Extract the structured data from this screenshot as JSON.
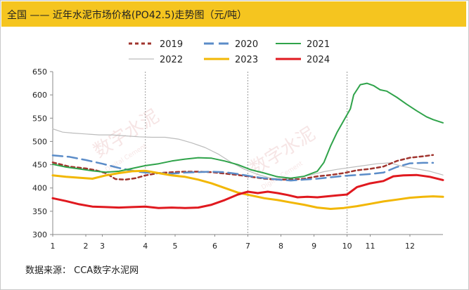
{
  "title": "全国 —— 近年水泥市场价格(PO42.5)走势图（元/吨）",
  "source": "数据来源：  CCA数字水泥网",
  "watermark": {
    "brand": "数字水泥",
    "sub": "Digital Cement"
  },
  "chart_data": {
    "type": "line",
    "title": "全国 —— 近年水泥市场价格(PO42.5)走势图（元/吨）",
    "xlabel": "",
    "ylabel": "",
    "ylim": [
      300,
      650
    ],
    "yticks": [
      300,
      350,
      400,
      450,
      500,
      550,
      600,
      650
    ],
    "x_range": [
      1,
      12.8
    ],
    "x_tick_labels": [
      {
        "label": "1",
        "x": 1
      },
      {
        "label": "2",
        "x": 2
      },
      {
        "label": "3",
        "x": 2.5
      },
      {
        "label": "4",
        "x": 3.8
      },
      {
        "label": "5",
        "x": 4.7
      },
      {
        "label": "6",
        "x": 5.9
      },
      {
        "label": "7",
        "x": 6.9
      },
      {
        "label": "8",
        "x": 7.9
      },
      {
        "label": "9",
        "x": 8.9
      },
      {
        "label": "10",
        "x": 9.9
      },
      {
        "label": "11",
        "x": 10.6
      },
      {
        "label": "12",
        "x": 11.8
      }
    ],
    "vertical_lines_at": [
      3.8,
      6.9,
      9.9
    ],
    "grid": "vertical dotted at selected months",
    "legend_placement": "top",
    "series": [
      {
        "name": "2019",
        "color": "#a0342e",
        "style": "dashed",
        "x": [
          1,
          1.5,
          2,
          2.3,
          2.6,
          2.9,
          3.2,
          3.5,
          3.8,
          4.2,
          4.6,
          5,
          5.4,
          5.8,
          6.2,
          6.6,
          7,
          7.4,
          7.8,
          8.2,
          8.6,
          9,
          9.4,
          9.8,
          10.2,
          10.6,
          11,
          11.4,
          11.8,
          12.2,
          12.5
        ],
        "values": [
          455,
          446,
          442,
          438,
          432,
          419,
          418,
          421,
          427,
          432,
          434,
          435,
          435,
          434,
          431,
          428,
          424,
          420,
          418,
          418,
          420,
          425,
          428,
          432,
          438,
          441,
          446,
          458,
          465,
          468,
          471
        ]
      },
      {
        "name": "2020",
        "color": "#5b8cc8",
        "style": "longdash",
        "x": [
          1,
          1.5,
          2,
          2.5,
          3,
          3.5,
          3.8,
          4.2,
          4.6,
          5,
          5.4,
          5.8,
          6.2,
          6.6,
          7,
          7.4,
          7.8,
          8.2,
          8.6,
          9,
          9.4,
          9.8,
          10.2,
          10.6,
          11,
          11.4,
          11.8,
          12.2,
          12.5
        ],
        "values": [
          470,
          467,
          460,
          452,
          443,
          436,
          433,
          432,
          431,
          433,
          434,
          435,
          434,
          430,
          425,
          421,
          418,
          416,
          418,
          420,
          423,
          426,
          428,
          430,
          433,
          445,
          453,
          454,
          454
        ]
      },
      {
        "name": "2021",
        "color": "#2fa34a",
        "style": "solid",
        "x": [
          1,
          1.4,
          1.8,
          2.2,
          2.6,
          3,
          3.4,
          3.8,
          4.2,
          4.6,
          5,
          5.4,
          5.8,
          6.2,
          6.6,
          7,
          7.4,
          7.8,
          8.2,
          8.6,
          9,
          9.2,
          9.4,
          9.6,
          9.8,
          10,
          10.1,
          10.3,
          10.5,
          10.7,
          10.9,
          11.1,
          11.4,
          11.7,
          12,
          12.3,
          12.5,
          12.8
        ],
        "values": [
          451,
          445,
          441,
          437,
          434,
          436,
          442,
          448,
          452,
          458,
          462,
          465,
          464,
          458,
          450,
          439,
          432,
          424,
          421,
          425,
          436,
          455,
          490,
          520,
          545,
          570,
          600,
          622,
          625,
          620,
          611,
          608,
          595,
          580,
          566,
          553,
          547,
          540
        ]
      },
      {
        "name": "2022",
        "color": "#bcbcbc",
        "style": "solid",
        "x": [
          1,
          1.3,
          1.6,
          2,
          2.4,
          2.8,
          3.2,
          3.6,
          4,
          4.4,
          4.8,
          5.2,
          5.6,
          6,
          6.4,
          6.8,
          7.2,
          7.6,
          8,
          8.4,
          8.8,
          9.2,
          9.6,
          10,
          10.4,
          10.8,
          11.2,
          11.6,
          12,
          12.4,
          12.8
        ],
        "values": [
          527,
          520,
          518,
          516,
          514,
          514,
          512,
          510,
          509,
          509,
          505,
          497,
          487,
          473,
          455,
          440,
          429,
          421,
          419,
          423,
          428,
          435,
          440,
          444,
          448,
          452,
          454,
          446,
          441,
          436,
          428
        ]
      },
      {
        "name": "2023",
        "color": "#f2b705",
        "style": "solid",
        "x": [
          1,
          1.4,
          1.8,
          2.2,
          2.6,
          3,
          3.4,
          3.8,
          4.2,
          4.6,
          5,
          5.4,
          5.8,
          6.2,
          6.6,
          7,
          7.4,
          7.8,
          8.2,
          8.6,
          9,
          9.4,
          9.8,
          10.2,
          10.6,
          11,
          11.4,
          11.8,
          12.2,
          12.5,
          12.8
        ],
        "values": [
          427,
          424,
          422,
          420,
          427,
          432,
          436,
          437,
          432,
          427,
          424,
          418,
          410,
          400,
          390,
          384,
          378,
          374,
          369,
          364,
          358,
          355,
          357,
          361,
          366,
          371,
          375,
          379,
          381,
          382,
          381
        ]
      },
      {
        "name": "2024",
        "color": "#e0191f",
        "style": "solid",
        "x": [
          1,
          1.4,
          1.8,
          2.2,
          2.6,
          3,
          3.4,
          3.8,
          4.2,
          4.6,
          5,
          5.4,
          5.8,
          6.2,
          6.6,
          6.9,
          7.2,
          7.5,
          7.8,
          8.1,
          8.4,
          8.7,
          9,
          9.3,
          9.6,
          9.9,
          10.2,
          10.6,
          11,
          11.3,
          11.6,
          12,
          12.4,
          12.8
        ],
        "values": [
          378,
          372,
          365,
          360,
          359,
          358,
          359,
          360,
          357,
          358,
          357,
          358,
          364,
          374,
          386,
          392,
          389,
          392,
          389,
          385,
          380,
          381,
          380,
          382,
          384,
          386,
          402,
          410,
          415,
          425,
          427,
          428,
          424,
          417
        ]
      }
    ]
  }
}
